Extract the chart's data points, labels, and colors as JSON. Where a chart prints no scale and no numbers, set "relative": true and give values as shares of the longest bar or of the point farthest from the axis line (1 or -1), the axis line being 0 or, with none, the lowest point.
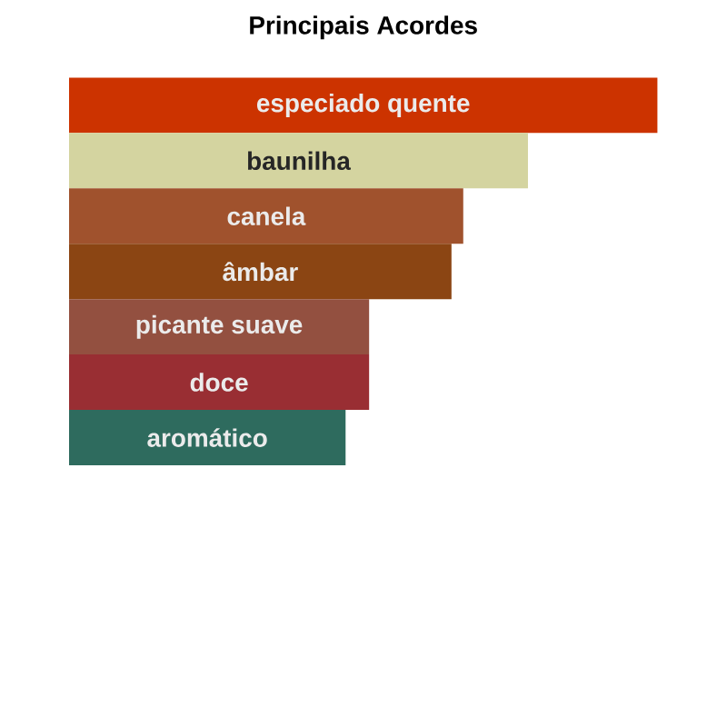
{
  "chart_data": {
    "type": "bar",
    "orientation": "horizontal",
    "relative": true,
    "title": "Principais Acordes",
    "categories": [
      "especiado quente",
      "baunilha",
      "canela",
      "âmbar",
      "picante suave",
      "doce",
      "aromático"
    ],
    "values": [
      1,
      0.78,
      0.67,
      0.65,
      0.51,
      0.51,
      0.47
    ],
    "colors": [
      "#cc3300",
      "#d4d4a0",
      "#a0522d",
      "#8b4513",
      "#935040",
      "#992e33",
      "#2e6b5e"
    ]
  }
}
